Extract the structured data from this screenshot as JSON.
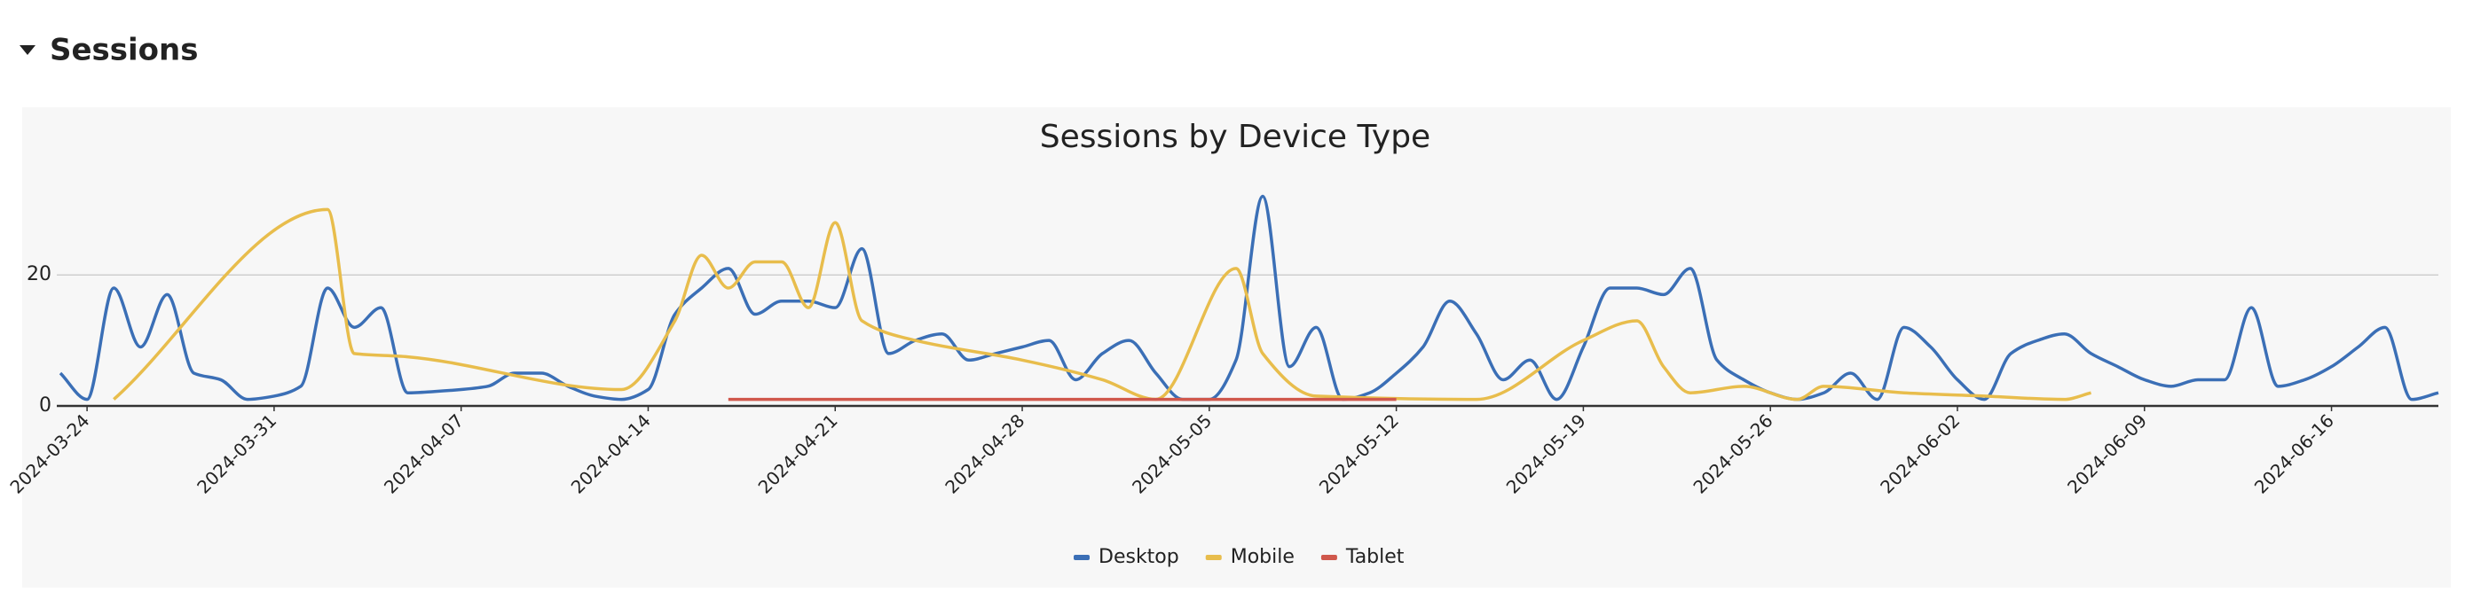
{
  "heading": "Sessions",
  "chart_data": {
    "type": "line",
    "title": "Sessions by Device Type",
    "xlim": [
      "2024-03-23",
      "2024-06-20"
    ],
    "xticks": [
      "2024-03-24",
      "2024-03-31",
      "2024-04-07",
      "2024-04-14",
      "2024-04-21",
      "2024-04-28",
      "2024-05-05",
      "2024-05-12",
      "2024-05-19",
      "2024-05-26",
      "2024-06-02",
      "2024-06-09",
      "2024-06-16"
    ],
    "ylim": [
      0,
      36
    ],
    "yticks": [
      0,
      20
    ],
    "grid": true,
    "legend": "bottom",
    "series": [
      {
        "name": "Desktop",
        "color": "#3b6fb6",
        "x": [
          "2024-03-23",
          "2024-03-24",
          "2024-03-25",
          "2024-03-26",
          "2024-03-27",
          "2024-03-28",
          "2024-03-29",
          "2024-03-30",
          "2024-03-31",
          "2024-04-01",
          "2024-04-02",
          "2024-04-03",
          "2024-04-04",
          "2024-04-05",
          "2024-04-06",
          "2024-04-07",
          "2024-04-08",
          "2024-04-09",
          "2024-04-10",
          "2024-04-11",
          "2024-04-12",
          "2024-04-13",
          "2024-04-14",
          "2024-04-15",
          "2024-04-16",
          "2024-04-17",
          "2024-04-18",
          "2024-04-19",
          "2024-04-20",
          "2024-04-21",
          "2024-04-22",
          "2024-04-23",
          "2024-04-24",
          "2024-04-25",
          "2024-04-26",
          "2024-04-27",
          "2024-04-28",
          "2024-04-29",
          "2024-04-30",
          "2024-05-01",
          "2024-05-02",
          "2024-05-03",
          "2024-05-04",
          "2024-05-05",
          "2024-05-06",
          "2024-05-07",
          "2024-05-08",
          "2024-05-09",
          "2024-05-10",
          "2024-05-11",
          "2024-05-12",
          "2024-05-13",
          "2024-05-14",
          "2024-05-15",
          "2024-05-16",
          "2024-05-17",
          "2024-05-18",
          "2024-05-19",
          "2024-05-20",
          "2024-05-21",
          "2024-05-22",
          "2024-05-23",
          "2024-05-24",
          "2024-05-25",
          "2024-05-26",
          "2024-05-27",
          "2024-05-28",
          "2024-05-29",
          "2024-05-30",
          "2024-05-31",
          "2024-06-01",
          "2024-06-02",
          "2024-06-03",
          "2024-06-04",
          "2024-06-05",
          "2024-06-06",
          "2024-06-07",
          "2024-06-08",
          "2024-06-09",
          "2024-06-10",
          "2024-06-11",
          "2024-06-12",
          "2024-06-13",
          "2024-06-14",
          "2024-06-15",
          "2024-06-16",
          "2024-06-17",
          "2024-06-18",
          "2024-06-19",
          "2024-06-20"
        ],
        "values": [
          5,
          1,
          18,
          9,
          17,
          5,
          4,
          1,
          1.5,
          3,
          18,
          12,
          15,
          2,
          2.2,
          2.5,
          3,
          5,
          5,
          3,
          1.5,
          1,
          2.5,
          14,
          18,
          21,
          14,
          16,
          16,
          15,
          24,
          8,
          10,
          11,
          7,
          8,
          9,
          10,
          4,
          8,
          10,
          5,
          1,
          1,
          7,
          32,
          6,
          12,
          1,
          2,
          5,
          9,
          16,
          11,
          4,
          7,
          1,
          9,
          18,
          18,
          17,
          21,
          7,
          4,
          2,
          1,
          2,
          5,
          1,
          12,
          9,
          4,
          1,
          8,
          10,
          11,
          8,
          6,
          4,
          3,
          4,
          4,
          15,
          3,
          4,
          6,
          9,
          12,
          1,
          2
        ]
      },
      {
        "name": "Mobile",
        "color": "#e8bd4c",
        "x": [
          "2024-03-25",
          "2024-04-02",
          "2024-04-03",
          "2024-04-05",
          "2024-04-13",
          "2024-04-15",
          "2024-04-16",
          "2024-04-17",
          "2024-04-18",
          "2024-04-19",
          "2024-04-20",
          "2024-04-21",
          "2024-04-22",
          "2024-04-24",
          "2024-04-28",
          "2024-05-01",
          "2024-05-03",
          "2024-05-06",
          "2024-05-07",
          "2024-05-09",
          "2024-05-15",
          "2024-05-19",
          "2024-05-21",
          "2024-05-22",
          "2024-05-23",
          "2024-05-25",
          "2024-05-27",
          "2024-05-28",
          "2024-05-31",
          "2024-06-03",
          "2024-06-06",
          "2024-06-07"
        ],
        "values": [
          1,
          30,
          8,
          7.5,
          2.5,
          13,
          23,
          18,
          22,
          22,
          15,
          28,
          13,
          10,
          7,
          4,
          1,
          21,
          8,
          1.5,
          1,
          10,
          13,
          6,
          2,
          3,
          1,
          3,
          2,
          1.5,
          1,
          2
        ]
      },
      {
        "name": "Tablet",
        "color": "#d0584c",
        "x": [
          "2024-04-17",
          "2024-05-12"
        ],
        "values": [
          1,
          1
        ]
      }
    ]
  }
}
